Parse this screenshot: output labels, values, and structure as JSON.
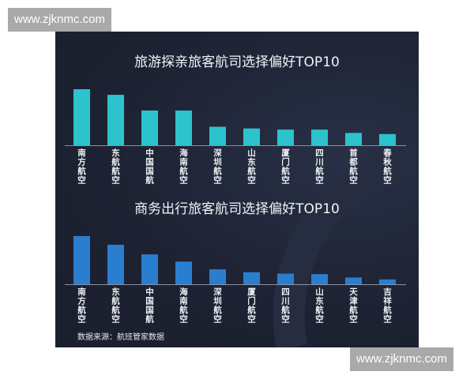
{
  "watermarks": [
    "www.zjknmc.com",
    "www.zjknmc.com"
  ],
  "source_note": "数据来源：航班管家数据",
  "chart_data": [
    {
      "type": "bar",
      "title": "旅游探亲旅客航司选择偏好TOP10",
      "categories": [
        "南方航空",
        "东航航空",
        "中国国航",
        "海南航空",
        "深圳航空",
        "山东航空",
        "厦门航空",
        "四川航空",
        "首都航空",
        "春秋航空"
      ],
      "values": [
        100,
        90,
        62,
        62,
        33,
        30,
        28,
        28,
        22,
        20
      ],
      "value_note": "relative bar heights, no axis printed",
      "color": "#2cc3cd",
      "grid": false
    },
    {
      "type": "bar",
      "title": "商务出行旅客航司选择偏好TOP10",
      "categories": [
        "南方航空",
        "东航航空",
        "中国国航",
        "海南航空",
        "深圳航空",
        "厦门航空",
        "四川航空",
        "山东航空",
        "天津航空",
        "吉祥航空"
      ],
      "values": [
        100,
        82,
        62,
        47,
        31,
        25,
        22,
        21,
        14,
        10
      ],
      "value_note": "relative bar heights, no axis printed",
      "color": "#2a7ed0",
      "grid": false
    }
  ]
}
